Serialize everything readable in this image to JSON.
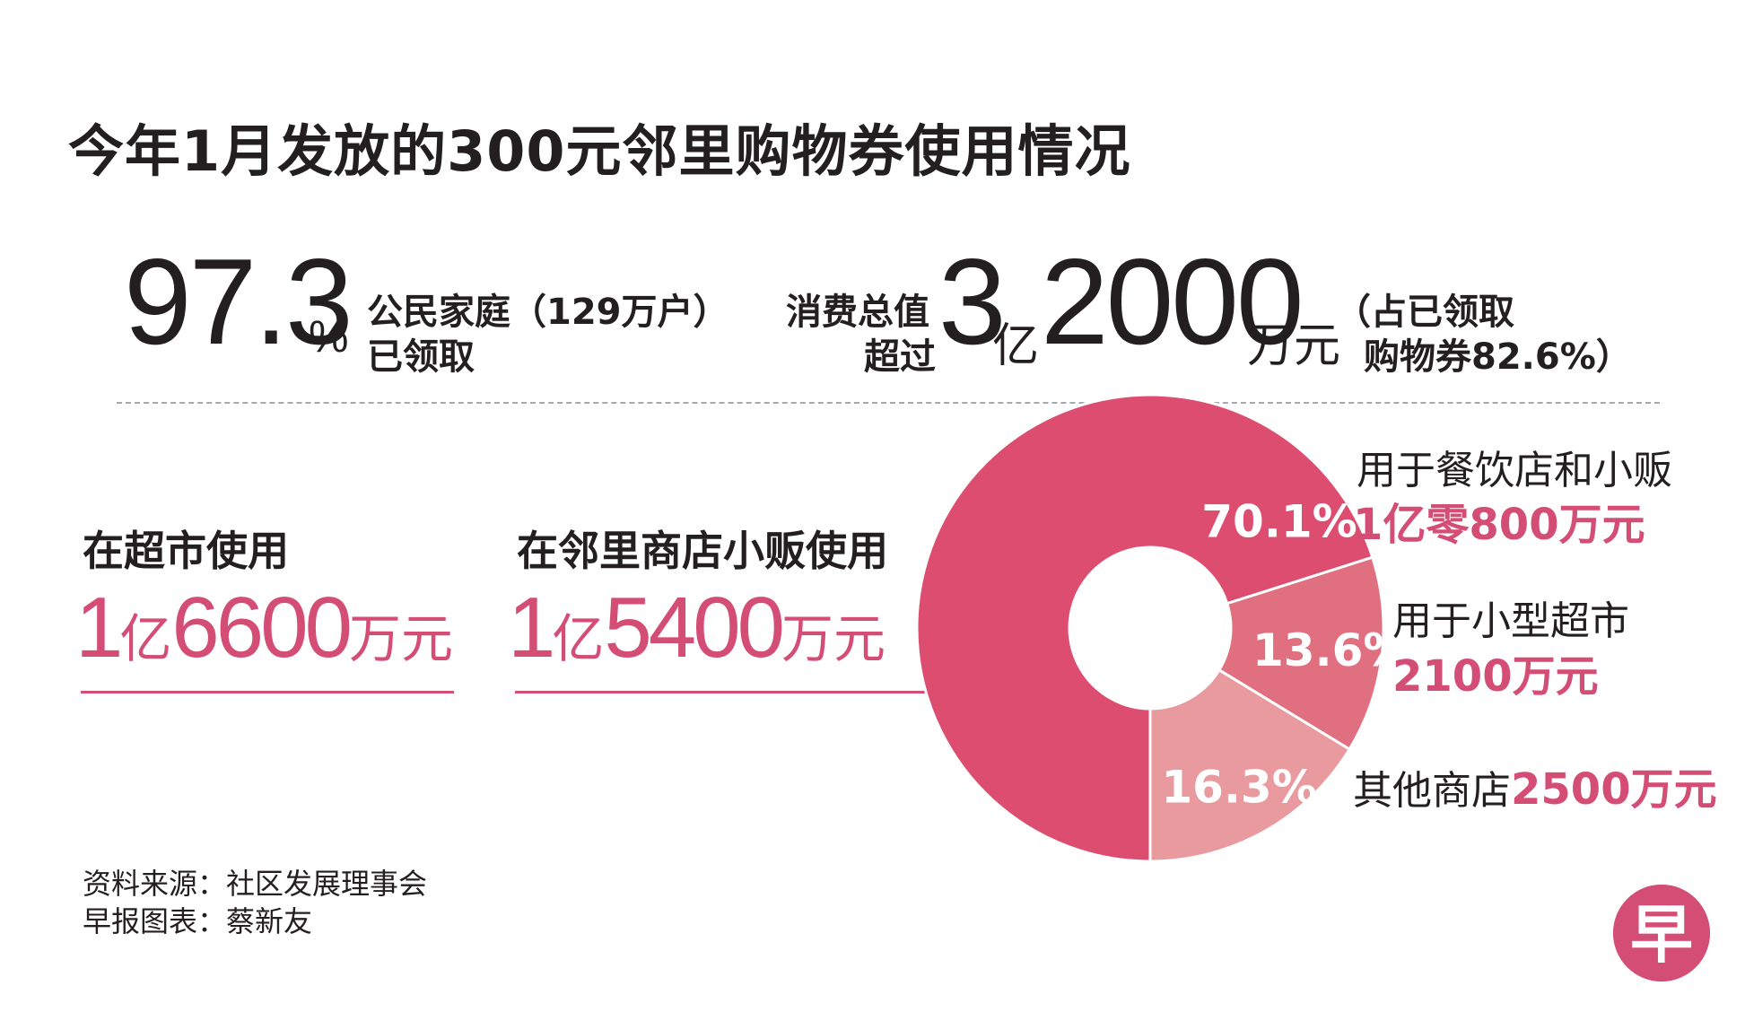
{
  "title": "今年1月发放的300元邻里购物券使用情况",
  "stat_households": {
    "value": "97.3",
    "unit": "%",
    "label_line1": "公民家庭（129万户）",
    "label_line2": "已领取"
  },
  "stat_spending": {
    "prefix_line1": "消费总值",
    "prefix_line2": "超过",
    "num1": "3",
    "unit1": "亿",
    "num2": "2000",
    "unit2": "万元",
    "note_line1": "（占已领取",
    "note_line2": "购物券82.6%）"
  },
  "supermarket": {
    "label": "在超市使用",
    "amount_num1": "1",
    "amount_unit1": "亿",
    "amount_num2": "6600",
    "amount_unit2": "万元"
  },
  "heartland": {
    "label": "在邻里商店小贩使用",
    "amount_num1": "1",
    "amount_unit1": "亿",
    "amount_num2": "5400",
    "amount_unit2": "万元"
  },
  "colors": {
    "accent": "#d44d74",
    "seg_food": "#dc4d70",
    "seg_minimart": "#e07080",
    "seg_other": "#e99a9f"
  },
  "chart_data": {
    "type": "pie",
    "categories": [
      "用于餐饮店和小贩",
      "用于小型超市",
      "其他商店"
    ],
    "values": [
      70.1,
      13.6,
      16.3
    ],
    "labels": [
      "70.1%",
      "13.6%",
      "16.3%"
    ],
    "amounts": [
      "1亿零800万元",
      "2100万元",
      "2500万元"
    ]
  },
  "source_line1": "资料来源：社区发展理事会",
  "source_line2": "早报图表：蔡新友",
  "logo_text": "早"
}
